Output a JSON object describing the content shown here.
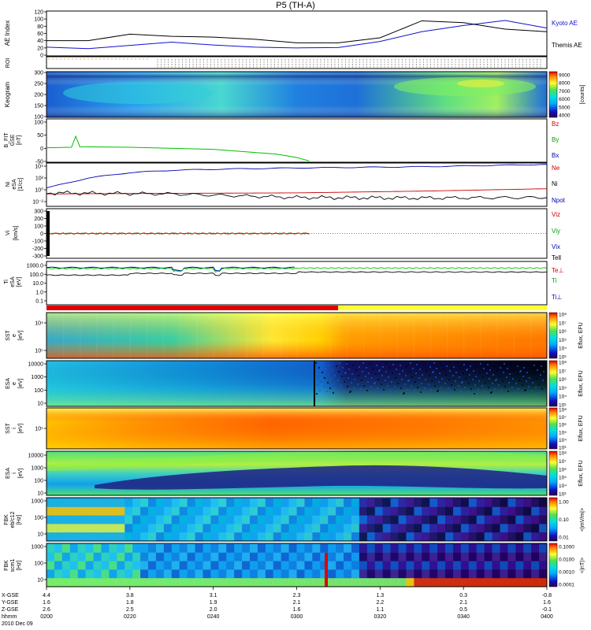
{
  "title": "P5 (TH-A)",
  "colors": {
    "kyoto": "#1010d0",
    "themis": "#000000",
    "bz": "#cc0000",
    "by": "#00c000",
    "bx": "#0000b0",
    "ne": "#cc0000",
    "ni": "#000000",
    "npot": "#0000b0",
    "te_perp": "#cc0000",
    "ti": "#00c000",
    "ti_perp": "#0000b0",
    "mode_bar_red": "#e00000",
    "mode_bar_yellow": "#ffff30"
  },
  "chart_data": [
    {
      "type": "line",
      "panel": "ae",
      "ylabel": "AE Index",
      "ylim": [
        0,
        120
      ],
      "yticks": [
        "120",
        "100",
        "80",
        "60",
        "40",
        "20",
        "0"
      ],
      "series": [
        {
          "name": "Kyoto AE",
          "x": [
            0,
            10,
            20,
            30,
            40,
            50,
            60,
            70,
            80,
            90,
            100,
            110,
            120
          ],
          "values": [
            22,
            18,
            27,
            36,
            28,
            22,
            20,
            21,
            38,
            65,
            82,
            96,
            75
          ]
        },
        {
          "name": "Themis AE",
          "x": [
            0,
            10,
            20,
            30,
            40,
            50,
            60,
            70,
            80,
            90,
            100,
            110,
            120
          ],
          "values": [
            40,
            40,
            58,
            52,
            50,
            44,
            34,
            34,
            48,
            95,
            90,
            72,
            65
          ]
        }
      ]
    },
    {
      "type": "line",
      "panel": "bfield",
      "ylabel": "B_FIT GSE [nT]",
      "ylim": [
        -50,
        100
      ],
      "yticks": [
        "100",
        "50",
        "0",
        "-50"
      ],
      "series": [
        {
          "name": "Bz",
          "values": []
        },
        {
          "name": "By",
          "x": [
            0,
            6,
            7,
            8,
            20,
            40,
            55,
            60,
            63
          ],
          "values": [
            2,
            4,
            46,
            6,
            4,
            -4,
            -22,
            -35,
            -48
          ]
        },
        {
          "name": "Bx",
          "values": []
        }
      ]
    },
    {
      "type": "line",
      "panel": "density",
      "ylabel": "Ni eSA [1/cc]",
      "yticks": [
        "10⁴",
        "10²",
        "10⁰",
        "10⁻²"
      ],
      "series": [
        {
          "name": "Ne",
          "x": [
            0,
            30,
            60,
            90,
            120
          ],
          "values": [
            0.2,
            0.25,
            0.3,
            0.6,
            1.5
          ]
        },
        {
          "name": "Ni",
          "x": [
            0,
            30,
            60,
            90,
            120
          ],
          "values": [
            0.3,
            0.2,
            0.05,
            0.04,
            0.05
          ]
        },
        {
          "name": "Npot",
          "x": [
            0,
            10,
            20,
            30,
            40,
            60,
            90,
            120
          ],
          "values": [
            2,
            100,
            800,
            2000,
            3000,
            5000,
            8000,
            20000
          ]
        }
      ]
    },
    {
      "type": "line",
      "panel": "velocity",
      "ylabel": "Vi [km/s]",
      "ylim": [
        -300,
        300
      ],
      "yticks": [
        "300",
        "200",
        "100",
        "0",
        "-100",
        "-200",
        "-300"
      ],
      "series": [
        {
          "name": "Viz",
          "values": []
        },
        {
          "name": "Viy",
          "values": []
        },
        {
          "name": "Vix",
          "values": []
        }
      ]
    },
    {
      "type": "line",
      "panel": "temperature",
      "ylabel": "Ti eSA [eV]",
      "yticks": [
        "1000.0",
        "100.0",
        "10.0",
        "1.0",
        "0.1"
      ],
      "series": [
        {
          "name": "Te⊥",
          "values": []
        },
        {
          "name": "Ti",
          "values": []
        },
        {
          "name": "Ti⊥",
          "values": []
        }
      ]
    },
    {
      "type": "heatmap",
      "panel": "keogram",
      "ylabel": "Keogram",
      "yticks": [
        "300",
        "250",
        "200",
        "150",
        "100"
      ],
      "colorbar_label": "[counts]",
      "colorbar_ticks": [
        "9000",
        "8000",
        "7000",
        "6000",
        "5000",
        "4000"
      ]
    },
    {
      "type": "heatmap",
      "panel": "sst_e",
      "ylabel": "SST e [eV]",
      "yticks": [
        "10⁴",
        "10⁵"
      ],
      "colorbar_label": "Eflux, EFU",
      "colorbar_ticks": [
        "10⁸",
        "10⁷",
        "10⁶",
        "10⁵",
        "10⁴",
        "10³"
      ]
    },
    {
      "type": "heatmap",
      "panel": "esa_e",
      "ylabel": "ESA e [eV]",
      "yticks": [
        "10000",
        "1000",
        "100",
        "10"
      ],
      "colorbar_label": "Eflux, EFU",
      "colorbar_ticks": [
        "10⁸",
        "10⁷",
        "10⁶",
        "10⁵",
        "10⁴",
        "10³"
      ]
    },
    {
      "type": "heatmap",
      "panel": "sst_i",
      "ylabel": "SST i [eV]",
      "yticks": [
        "10⁵"
      ],
      "colorbar_label": "Eflux, EFU",
      "colorbar_ticks": [
        "10⁸",
        "10⁷",
        "10⁶",
        "10⁵",
        "10⁴",
        "10³"
      ]
    },
    {
      "type": "heatmap",
      "panel": "esa_i",
      "ylabel": "ESA i [eV]",
      "yticks": [
        "10000",
        "1000",
        "100",
        "10"
      ],
      "colorbar_label": "Eflux, EFU",
      "colorbar_ticks": [
        "10⁸",
        "10⁷",
        "10⁶",
        "10⁵",
        "10⁴",
        "10³"
      ]
    },
    {
      "type": "heatmap",
      "panel": "fbk_e",
      "ylabel": "FBK eb/c12 [Hz]",
      "yticks": [
        "1000",
        "100",
        "10"
      ],
      "colorbar_label": "<|mV/m|>",
      "colorbar_ticks": [
        "1.00",
        "0.10",
        "0.01"
      ]
    },
    {
      "type": "heatmap",
      "panel": "fbk_b",
      "ylabel": "FBK scm1 [Hz]",
      "yticks": [
        "1000",
        "100",
        "10"
      ],
      "colorbar_label": "<|nT|>",
      "colorbar_ticks": [
        "0.1000",
        "0.0100",
        "0.0010",
        "0.0001"
      ]
    }
  ],
  "labels": {
    "ae_ylabel": "AE Index",
    "kyoto": "Kyoto AE",
    "themis": "Themis AE",
    "roi": "ROI",
    "keogram": "Keogram",
    "counts": "[counts]",
    "bfit_1": "B_FIT",
    "bfit_2": "GSE",
    "bfit_3": "[nT]",
    "ni_1": "Ni",
    "ni_2": "eSA",
    "ni_3": "[1/cc]",
    "vi_1": "Vi",
    "vi_2": "[km/s]",
    "ti_1": "Ti",
    "ti_2": "eSA",
    "ti_3": "[eV]",
    "sst_e_1": "SST",
    "sst_e_2": "e",
    "sst_e_3": "[eV]",
    "esa_e_1": "ESA",
    "esa_e_2": "e",
    "esa_e_3": "[eV]",
    "sst_i_1": "SST",
    "sst_i_2": "i",
    "sst_i_3": "[eV]",
    "esa_i_1": "ESA",
    "esa_i_2": "i",
    "esa_i_3": "[eV]",
    "fbk_e_1": "FBK",
    "fbk_e_2": "eb/c12",
    "fbk_e_3": "[Hz]",
    "fbk_b_1": "FBK",
    "fbk_b_2": "scm1",
    "fbk_b_3": "[Hz]",
    "eflux": "Eflux, EFU",
    "mvm": "<|mV/m|>",
    "nt": "<|nT|>",
    "bz": "Bz",
    "by": "By",
    "bx": "Bx",
    "ne": "Ne",
    "ni": "Ni",
    "npot": "Npot",
    "viz": "Viz",
    "viy": "Viy",
    "vix": "Vix",
    "tell": "Tell",
    "teperp": "Te⊥",
    "ti": "Ti",
    "tiperp": "Ti⊥"
  },
  "ticks": {
    "ae": [
      "120",
      "100",
      "80",
      "60",
      "40",
      "20",
      "0"
    ],
    "keogram": [
      "300",
      "250",
      "200",
      "150",
      "100"
    ],
    "keo_cbar": [
      "9000",
      "8000",
      "7000",
      "6000",
      "5000",
      "4000"
    ],
    "bfit": [
      "100",
      "50",
      "0",
      "-50"
    ],
    "ni": [
      "10⁴",
      "10²",
      "10⁰",
      "10⁻²"
    ],
    "vi": [
      "300",
      "200",
      "100",
      "0",
      "-100",
      "-200",
      "-300"
    ],
    "ti": [
      "1000.0",
      "100.0",
      "10.0",
      "1.0",
      "0.1"
    ],
    "sst_e": [
      "10⁴",
      "10⁵"
    ],
    "esa": [
      "10000",
      "1000",
      "100",
      "10"
    ],
    "sst_i": [
      "10⁵"
    ],
    "fbk": [
      "1000",
      "100",
      "10"
    ],
    "eflux": [
      "10⁸",
      "10⁷",
      "10⁶",
      "10⁵",
      "10⁴",
      "10³"
    ],
    "fbk_e_cbar": [
      "1.00",
      "0.10",
      "0.01"
    ],
    "fbk_b_cbar": [
      "0.1000",
      "0.0100",
      "0.0010",
      "0.0001"
    ]
  },
  "xaxis": {
    "row_labels": [
      "X-GSE",
      "Y-GSE",
      "Z-GSE",
      "hhmm",
      "2010 Dec 09"
    ],
    "columns": [
      {
        "x": "4.4",
        "y": "1.6",
        "z": "2.6",
        "t": "0200"
      },
      {
        "x": "3.8",
        "y": "1.8",
        "z": "2.5",
        "t": "0220"
      },
      {
        "x": "3.1",
        "y": "1.9",
        "z": "2.0",
        "t": "0240"
      },
      {
        "x": "2.3",
        "y": "2.1",
        "z": "1.6",
        "t": "0300"
      },
      {
        "x": "1.3",
        "y": "2.2",
        "z": "1.1",
        "t": "0320"
      },
      {
        "x": "0.3",
        "y": "2.1",
        "z": "0.5",
        "t": "0340"
      },
      {
        "x": "-0.8",
        "y": "1.6",
        "z": "-0.1",
        "t": "0400"
      }
    ]
  }
}
